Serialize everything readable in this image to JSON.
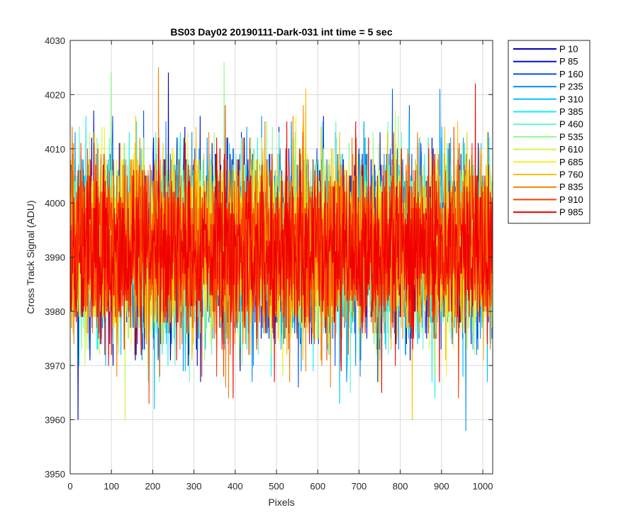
{
  "chart_data": {
    "type": "line",
    "title": "BS03 Day02 20190111-Dark-031 int time = 5 sec",
    "xlabel": "Pixels",
    "ylabel": "Cross Track Signal (ADU)",
    "xlim": [
      0,
      1024
    ],
    "ylim": [
      3950,
      4030
    ],
    "xticks": [
      0,
      100,
      200,
      300,
      400,
      500,
      600,
      700,
      800,
      900,
      1000
    ],
    "yticks": [
      3950,
      3960,
      3970,
      3980,
      3990,
      4000,
      4010,
      4020,
      4030
    ],
    "grid": true,
    "legend_position": "outside-top-right",
    "n_points": 1024,
    "series": [
      {
        "name": "P 10",
        "color": "#0000B0",
        "mean": 3992,
        "std": 8.0
      },
      {
        "name": "P 85",
        "color": "#0010DD",
        "mean": 3992,
        "std": 8.0
      },
      {
        "name": "P 160",
        "color": "#0050F0",
        "mean": 3992,
        "std": 8.0
      },
      {
        "name": "P 235",
        "color": "#0090F8",
        "mean": 3992,
        "std": 8.0
      },
      {
        "name": "P 310",
        "color": "#00C0FF",
        "mean": 3992,
        "std": 8.0
      },
      {
        "name": "P 385",
        "color": "#10F0F0",
        "mean": 3992,
        "std": 8.0
      },
      {
        "name": "P 460",
        "color": "#60F8C8",
        "mean": 3992,
        "std": 8.0
      },
      {
        "name": "P 535",
        "color": "#90F890",
        "mean": 3992,
        "std": 8.0
      },
      {
        "name": "P 610",
        "color": "#C8F850",
        "mean": 3992,
        "std": 8.0
      },
      {
        "name": "P 685",
        "color": "#F8F020",
        "mean": 3992,
        "std": 8.0
      },
      {
        "name": "P 760",
        "color": "#F8C000",
        "mean": 3992,
        "std": 8.0
      },
      {
        "name": "P 835",
        "color": "#F88000",
        "mean": 3992,
        "std": 8.0
      },
      {
        "name": "P 910",
        "color": "#F84000",
        "mean": 3992,
        "std": 8.0
      },
      {
        "name": "P 985",
        "color": "#F00000",
        "mean": 3991,
        "std": 8.0
      }
    ],
    "spike_highlights": [
      {
        "series": "P 10",
        "x": 18,
        "y": 3960
      },
      {
        "series": "P 235",
        "x": 958,
        "y": 3958
      },
      {
        "series": "P 535",
        "x": 372,
        "y": 4026
      },
      {
        "series": "P 535",
        "x": 98,
        "y": 4024
      },
      {
        "series": "P 835",
        "x": 213,
        "y": 4025
      },
      {
        "series": "P 10",
        "x": 237,
        "y": 4024
      },
      {
        "series": "P 610",
        "x": 132,
        "y": 3960
      },
      {
        "series": "P 760",
        "x": 828,
        "y": 3960
      }
    ]
  }
}
